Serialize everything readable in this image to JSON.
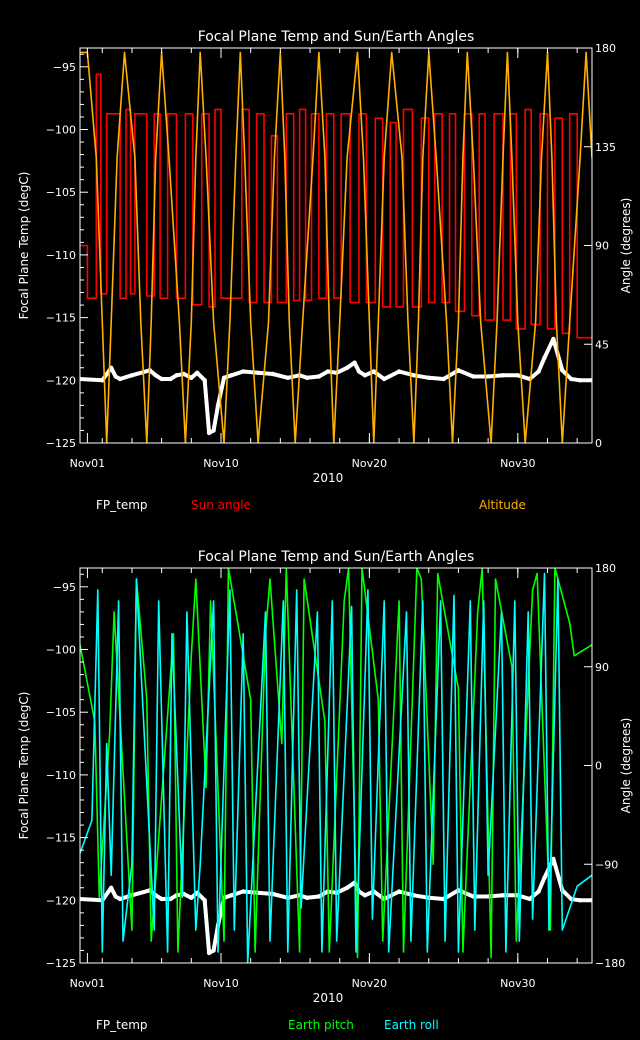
{
  "colors": {
    "background": "#000000",
    "axis": "#ffffff",
    "fp_temp": "#ffffff",
    "sun_angle": "#ff0000",
    "altitude": "#ffb000",
    "earth_pitch": "#00ff00",
    "earth_roll": "#00ffff"
  },
  "chart_data": [
    {
      "type": "line",
      "title": "Focal Plane Temp and Sun/Earth Angles",
      "xlabel": "2010",
      "ylabel": "Focal Plane Temp (degC)",
      "ylabel_right": "Angle (degrees)",
      "x_units": "day of month",
      "xlim": [
        0.5,
        35
      ],
      "ylim": [
        -125,
        -93.5
      ],
      "ylim_right": [
        0,
        180
      ],
      "xticks": [
        {
          "value": 1,
          "label": "Nov01"
        },
        {
          "value": 10,
          "label": "Nov10"
        },
        {
          "value": 20,
          "label": "Nov20"
        },
        {
          "value": 30,
          "label": "Nov30"
        }
      ],
      "yticks": [
        {
          "value": -95,
          "label": "−95"
        },
        {
          "value": -100,
          "label": "−100"
        },
        {
          "value": -105,
          "label": "−105"
        },
        {
          "value": -110,
          "label": "−110"
        },
        {
          "value": -115,
          "label": "−115"
        },
        {
          "value": -120,
          "label": "−120"
        },
        {
          "value": -125,
          "label": "−125"
        }
      ],
      "yticks_right": [
        {
          "value": 180,
          "label": "180"
        },
        {
          "value": 135,
          "label": "135"
        },
        {
          "value": 90,
          "label": "90"
        },
        {
          "value": 45,
          "label": "45"
        },
        {
          "value": 0,
          "label": "0"
        }
      ],
      "legend": [
        {
          "name": "FP_temp",
          "color": "#ffffff"
        },
        {
          "name": "Sun angle",
          "color": "#ff0000"
        },
        {
          "name": "Altitude",
          "color": "#ffb000"
        }
      ],
      "series": [
        {
          "name": "FP_temp",
          "axis": "left",
          "style": "dense-markers",
          "x": [
            0.5,
            2.0,
            2.6,
            2.9,
            3.2,
            4.0,
            5.2,
            5.6,
            6.0,
            6.6,
            7.0,
            7.5,
            8.0,
            8.4,
            8.9,
            9.2,
            9.5,
            9.8,
            10.2,
            10.7,
            11.5,
            12.5,
            13.5,
            14.5,
            15.3,
            15.8,
            16.6,
            17.2,
            17.8,
            18.5,
            19.0,
            19.3,
            19.7,
            20.3,
            21.0,
            22.0,
            23.0,
            24.0,
            25.0,
            26.0,
            27.0,
            28.0,
            29.0,
            30.0,
            30.8,
            31.4,
            31.8,
            32.4,
            33.0,
            33.6,
            34.2,
            35.0
          ],
          "y": [
            -119.9,
            -120.0,
            -119.0,
            -119.7,
            -119.9,
            -119.6,
            -119.2,
            -119.6,
            -119.9,
            -119.9,
            -119.6,
            -119.5,
            -119.8,
            -119.4,
            -120.0,
            -124.2,
            -124.0,
            -122.0,
            -119.8,
            -119.6,
            -119.3,
            -119.4,
            -119.5,
            -119.8,
            -119.6,
            -119.8,
            -119.7,
            -119.3,
            -119.4,
            -119.0,
            -118.6,
            -119.3,
            -119.6,
            -119.3,
            -119.9,
            -119.3,
            -119.6,
            -119.8,
            -119.9,
            -119.2,
            -119.7,
            -119.7,
            -119.6,
            -119.6,
            -119.9,
            -119.3,
            -118.2,
            -116.7,
            -119.2,
            -119.9,
            -120.0,
            -120.0
          ]
        },
        {
          "name": "Sun angle",
          "axis": "right",
          "style": "step",
          "x": [
            0.5,
            1.0,
            1.6,
            1.9,
            2.3,
            3.2,
            3.6,
            3.9,
            4.2,
            5.0,
            5.5,
            5.9,
            6.4,
            7.0,
            7.6,
            8.1,
            8.7,
            9.2,
            9.6,
            10.0,
            10.8,
            11.4,
            11.9,
            12.4,
            12.9,
            13.4,
            13.8,
            14.4,
            14.9,
            15.3,
            15.7,
            16.1,
            16.6,
            17.1,
            17.6,
            18.1,
            18.7,
            19.3,
            19.8,
            20.4,
            20.9,
            21.4,
            21.8,
            22.3,
            22.9,
            23.5,
            24.0,
            24.4,
            24.9,
            25.4,
            25.8,
            26.4,
            26.9,
            27.4,
            27.8,
            28.4,
            29.0,
            29.5,
            29.9,
            30.5,
            30.9,
            31.5,
            32.0,
            32.5,
            33.0,
            33.5,
            34.0,
            35.0
          ],
          "y": [
            90,
            66,
            168,
            68,
            150,
            66,
            152,
            68,
            150,
            67,
            150,
            66,
            150,
            66,
            150,
            63,
            150,
            62,
            152,
            66,
            66,
            152,
            64,
            150,
            64,
            140,
            64,
            150,
            65,
            152,
            65,
            150,
            66,
            150,
            66,
            150,
            64,
            150,
            64,
            148,
            62,
            146,
            62,
            152,
            62,
            148,
            64,
            150,
            64,
            150,
            60,
            150,
            58,
            150,
            56,
            150,
            56,
            150,
            52,
            152,
            54,
            150,
            52,
            148,
            50,
            150,
            48,
            48
          ]
        },
        {
          "name": "Altitude",
          "axis": "right",
          "style": "smooth",
          "x": [
            0.5,
            1.0,
            1.6,
            2.0,
            2.3,
            2.6,
            3.0,
            3.5,
            4.2,
            4.6,
            5.0,
            5.3,
            5.6,
            6.0,
            6.5,
            7.2,
            7.6,
            8.0,
            8.3,
            8.6,
            9.0,
            9.5,
            10.2,
            10.6,
            11.0,
            11.3,
            11.6,
            12.0,
            12.5,
            13.2,
            13.6,
            14.0,
            14.3,
            14.6,
            15.0,
            15.5,
            16.2,
            16.6,
            17.0,
            17.3,
            17.6,
            18.0,
            18.5,
            19.2,
            19.6,
            20.0,
            20.3,
            20.6,
            21.0,
            21.5,
            22.2,
            22.6,
            23.0,
            23.3,
            23.6,
            24.0,
            24.5,
            25.2,
            25.6,
            26.0,
            26.3,
            26.6,
            27.0,
            27.5,
            28.2,
            28.6,
            29.0,
            29.3,
            29.6,
            30.0,
            30.5,
            31.2,
            31.6,
            32.0,
            32.3,
            32.6,
            33.0,
            33.5,
            34.2,
            34.6,
            35.0
          ],
          "y": [
            178,
            178,
            130,
            55,
            0,
            55,
            130,
            178,
            130,
            55,
            0,
            55,
            130,
            178,
            130,
            55,
            0,
            55,
            130,
            178,
            130,
            55,
            0,
            55,
            130,
            178,
            130,
            55,
            0,
            55,
            130,
            178,
            130,
            55,
            0,
            55,
            130,
            178,
            130,
            55,
            0,
            55,
            130,
            178,
            130,
            55,
            0,
            55,
            130,
            178,
            130,
            55,
            0,
            55,
            130,
            178,
            130,
            55,
            0,
            55,
            130,
            178,
            130,
            55,
            0,
            55,
            130,
            178,
            130,
            55,
            0,
            55,
            130,
            178,
            130,
            55,
            0,
            55,
            130,
            178,
            130
          ]
        }
      ]
    },
    {
      "type": "line",
      "title": "Focal Plane Temp and Sun/Earth Angles",
      "xlabel": "2010",
      "ylabel": "Focal Plane Temp (degC)",
      "ylabel_right": "Angle (degrees)",
      "x_units": "day of month",
      "xlim": [
        0.5,
        35
      ],
      "ylim": [
        -125,
        -93.5
      ],
      "ylim_right": [
        -180,
        180
      ],
      "xticks": [
        {
          "value": 1,
          "label": "Nov01"
        },
        {
          "value": 10,
          "label": "Nov10"
        },
        {
          "value": 20,
          "label": "Nov20"
        },
        {
          "value": 30,
          "label": "Nov30"
        }
      ],
      "yticks": [
        {
          "value": -95,
          "label": "−95"
        },
        {
          "value": -100,
          "label": "−100"
        },
        {
          "value": -105,
          "label": "−105"
        },
        {
          "value": -110,
          "label": "−110"
        },
        {
          "value": -115,
          "label": "−115"
        },
        {
          "value": -120,
          "label": "−120"
        },
        {
          "value": -125,
          "label": "−125"
        }
      ],
      "yticks_right": [
        {
          "value": 180,
          "label": "180"
        },
        {
          "value": 90,
          "label": "90"
        },
        {
          "value": 0,
          "label": "0"
        },
        {
          "value": -90,
          "label": "−90"
        },
        {
          "value": -180,
          "label": "−180"
        }
      ],
      "legend": [
        {
          "name": "FP_temp",
          "color": "#ffffff"
        },
        {
          "name": "Earth pitch",
          "color": "#00ff00"
        },
        {
          "name": "Earth roll",
          "color": "#00ffff"
        }
      ],
      "series": [
        {
          "name": "FP_temp",
          "axis": "left",
          "style": "dense-markers",
          "x": [
            0.5,
            2.0,
            2.6,
            2.9,
            3.2,
            4.0,
            5.2,
            5.6,
            6.0,
            6.6,
            7.0,
            7.5,
            8.0,
            8.4,
            8.9,
            9.2,
            9.5,
            9.8,
            10.2,
            10.7,
            11.5,
            12.5,
            13.5,
            14.5,
            15.3,
            15.8,
            16.6,
            17.2,
            17.8,
            18.5,
            19.0,
            19.3,
            19.7,
            20.3,
            21.0,
            22.0,
            23.0,
            24.0,
            25.0,
            26.0,
            27.0,
            28.0,
            29.0,
            30.0,
            30.8,
            31.4,
            31.8,
            32.4,
            33.0,
            33.6,
            34.2,
            35.0
          ],
          "y": [
            -119.9,
            -120.0,
            -119.0,
            -119.7,
            -119.9,
            -119.6,
            -119.2,
            -119.6,
            -119.9,
            -119.9,
            -119.6,
            -119.5,
            -119.8,
            -119.4,
            -120.0,
            -124.2,
            -124.0,
            -122.0,
            -119.8,
            -119.6,
            -119.3,
            -119.4,
            -119.5,
            -119.8,
            -119.6,
            -119.8,
            -119.7,
            -119.3,
            -119.4,
            -119.0,
            -118.6,
            -119.3,
            -119.6,
            -119.3,
            -119.9,
            -119.3,
            -119.6,
            -119.8,
            -119.9,
            -119.2,
            -119.7,
            -119.7,
            -119.6,
            -119.6,
            -119.9,
            -119.3,
            -118.2,
            -116.7,
            -119.2,
            -119.9,
            -120.0,
            -120.0
          ]
        },
        {
          "name": "Earth pitch",
          "axis": "right",
          "style": "sawtooth",
          "x": [
            0.5,
            1.5,
            1.8,
            2.5,
            2.8,
            4.0,
            4.3,
            5.0,
            5.3,
            6.8,
            7.1,
            8.0,
            8.3,
            9.0,
            9.3,
            10.2,
            10.5,
            12.0,
            12.3,
            13.0,
            13.3,
            14.1,
            14.4,
            15.3,
            15.6,
            17.0,
            17.3,
            18.3,
            18.6,
            19.2,
            19.5,
            20.6,
            20.9,
            22.0,
            22.3,
            23.2,
            23.5,
            24.3,
            24.6,
            26.0,
            26.3,
            27.3,
            27.6,
            28.2,
            28.5,
            29.6,
            29.9,
            31.0,
            31.3,
            32.2,
            32.5,
            33.5,
            33.8,
            35.0
          ],
          "y": [
            110,
            40,
            -120,
            30,
            140,
            -150,
            170,
            60,
            -160,
            120,
            -170,
            100,
            170,
            -20,
            150,
            -160,
            180,
            60,
            -170,
            120,
            170,
            20,
            180,
            -170,
            170,
            40,
            -170,
            150,
            180,
            -175,
            180,
            60,
            -160,
            150,
            -170,
            180,
            170,
            -90,
            175,
            70,
            -170,
            140,
            180,
            -175,
            170,
            90,
            -160,
            160,
            175,
            -150,
            180,
            130,
            100,
            110
          ]
        },
        {
          "name": "Earth roll",
          "axis": "right",
          "style": "sawtooth",
          "x": [
            0.5,
            1.3,
            1.7,
            2.0,
            2.3,
            2.6,
            3.1,
            3.4,
            4.0,
            4.3,
            5.5,
            5.8,
            6.4,
            6.7,
            7.4,
            7.7,
            8.3,
            8.6,
            9.5,
            9.8,
            10.6,
            10.9,
            11.5,
            11.8,
            13.0,
            13.3,
            14.2,
            14.5,
            15.1,
            15.4,
            16.5,
            16.8,
            17.5,
            17.8,
            18.8,
            19.1,
            19.9,
            20.2,
            21.0,
            21.3,
            22.5,
            22.8,
            23.6,
            23.9,
            24.8,
            25.1,
            25.7,
            26.0,
            26.8,
            27.1,
            27.7,
            28.0,
            28.9,
            29.2,
            29.8,
            30.1,
            30.7,
            31.0,
            31.8,
            32.1,
            32.7,
            33.0,
            34.0,
            35.0
          ],
          "y": [
            -80,
            -50,
            160,
            -170,
            20,
            -100,
            150,
            -160,
            -90,
            170,
            -150,
            150,
            -170,
            120,
            -120,
            140,
            -150,
            -90,
            150,
            -170,
            160,
            -150,
            120,
            -180,
            140,
            -160,
            150,
            -170,
            160,
            -130,
            140,
            -170,
            150,
            -160,
            145,
            -170,
            160,
            -140,
            150,
            -170,
            140,
            -160,
            150,
            -170,
            150,
            -160,
            155,
            -170,
            150,
            -150,
            150,
            -100,
            140,
            -170,
            150,
            -160,
            140,
            -140,
            175,
            -150,
            170,
            -150,
            -110,
            -100
          ]
        }
      ]
    }
  ]
}
